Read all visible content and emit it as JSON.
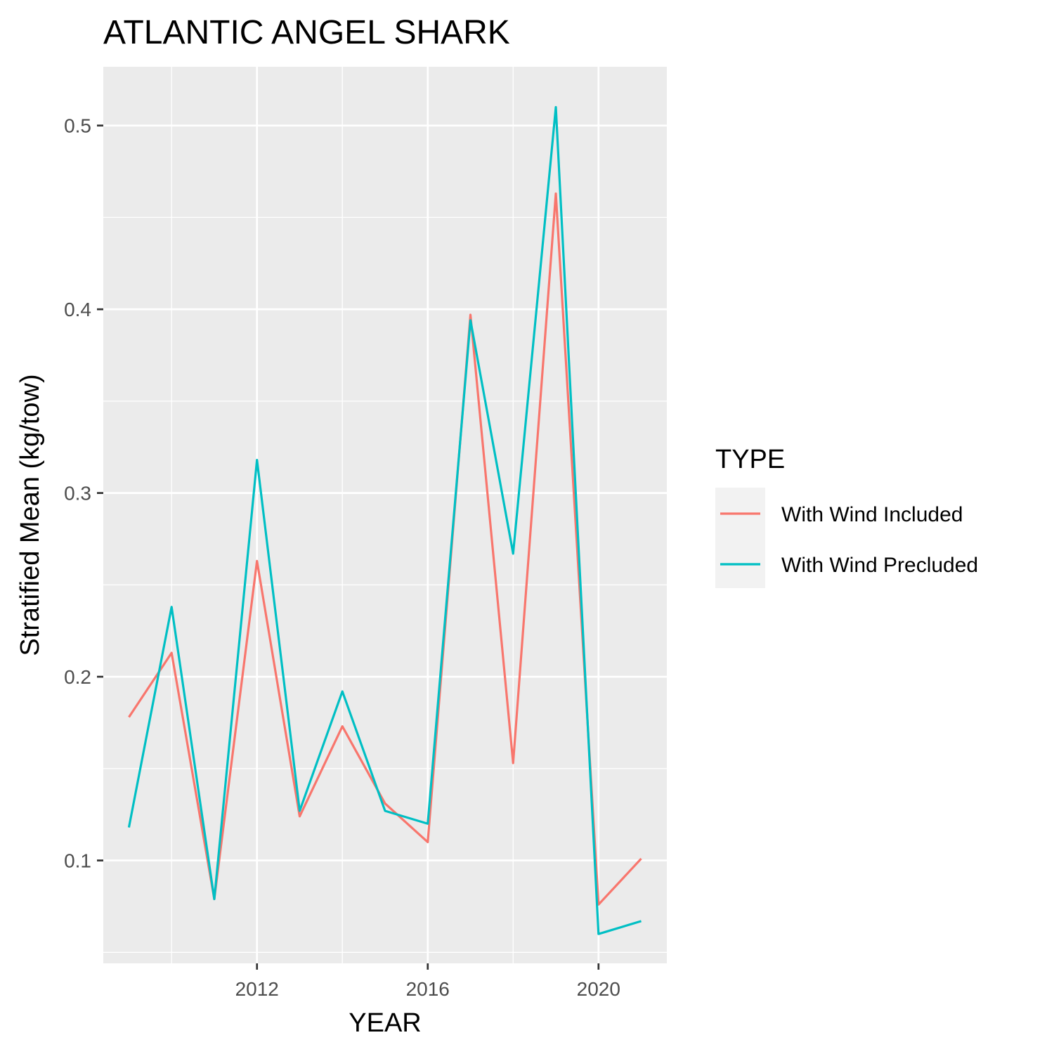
{
  "chart_data": {
    "type": "line",
    "title": "ATLANTIC ANGEL SHARK",
    "xlabel": "YEAR",
    "ylabel": "Stratified Mean (kg/tow)",
    "x": [
      2009,
      2010,
      2011,
      2012,
      2013,
      2014,
      2015,
      2016,
      2017,
      2018,
      2019,
      2020,
      2021
    ],
    "xlim": [
      2008.4,
      2021.6
    ],
    "ylim": [
      0.044,
      0.532
    ],
    "x_ticks": [
      2012,
      2016,
      2020
    ],
    "x_tick_labels": [
      "2012",
      "2016",
      "2020"
    ],
    "y_ticks": [
      0.1,
      0.2,
      0.3,
      0.4,
      0.5
    ],
    "y_tick_labels": [
      "0.1",
      "0.2",
      "0.3",
      "0.4",
      "0.5"
    ],
    "grid": true,
    "legend": {
      "title": "TYPE",
      "position": "right"
    },
    "series": [
      {
        "name": "With Wind Included",
        "color": "#F8766D",
        "values": [
          0.178,
          0.213,
          0.079,
          0.263,
          0.124,
          0.173,
          0.131,
          0.11,
          0.397,
          0.153,
          0.463,
          0.076,
          0.101
        ]
      },
      {
        "name": "With Wind Precluded",
        "color": "#00BFC4",
        "values": [
          0.118,
          0.238,
          0.079,
          0.318,
          0.127,
          0.192,
          0.127,
          0.12,
          0.394,
          0.267,
          0.51,
          0.06,
          0.067
        ]
      }
    ]
  }
}
